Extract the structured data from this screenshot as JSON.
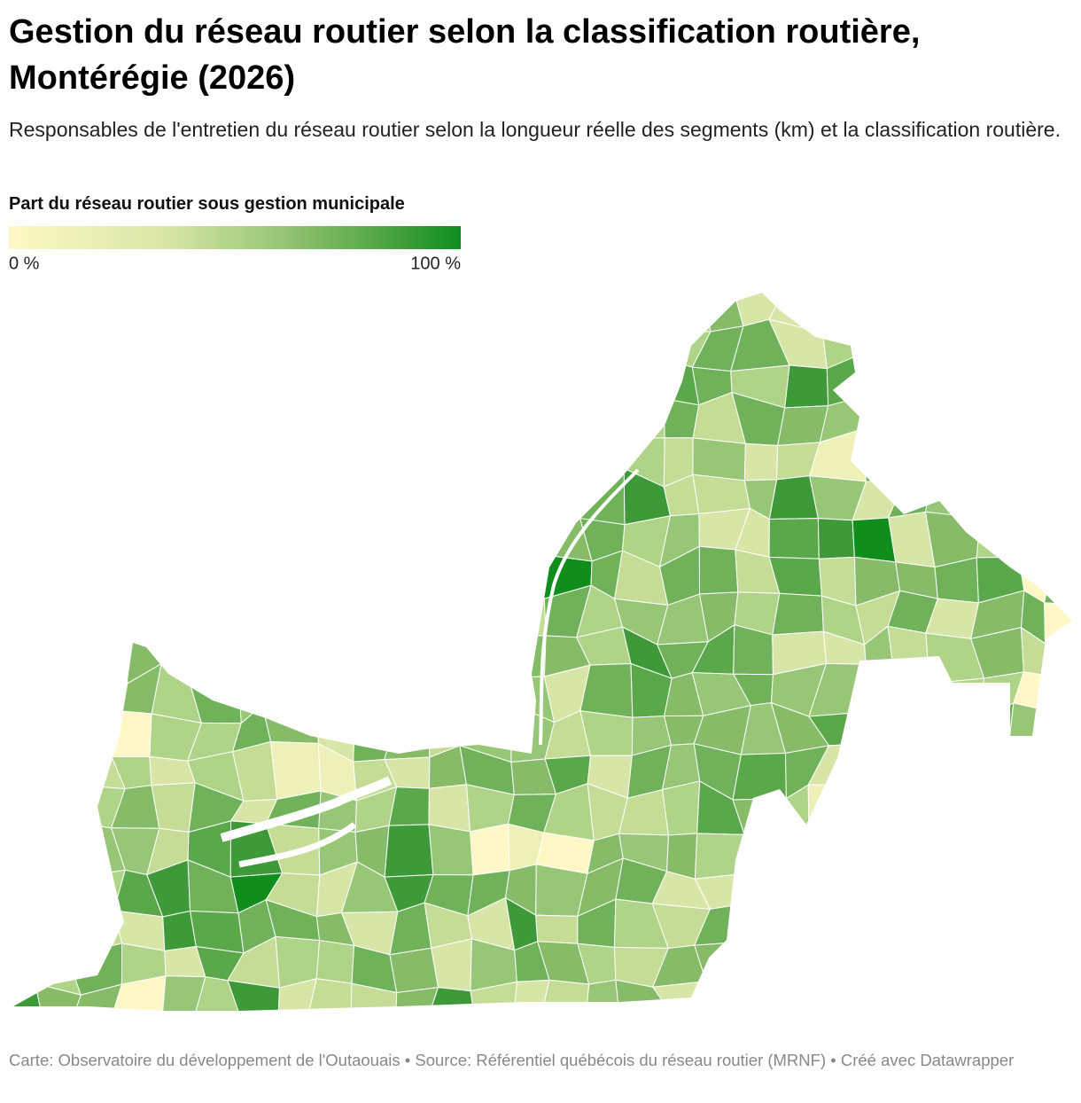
{
  "header": {
    "title": "Gestion du réseau routier selon la classification routière, Montérégie (2026)",
    "subtitle": "Responsables de l'entretien du réseau routier selon la longueur réelle des segments (km) et la classification routière."
  },
  "legend": {
    "title": "Part du réseau routier sous gestion municipale",
    "min": {
      "value": 0,
      "label": "0 %"
    },
    "max": {
      "value": 100,
      "label": "100 %"
    }
  },
  "footer": "Carte: Observatoire du développement de l'Outaouais • Source: Référentiel québécois du réseau routier (MRNF) • Créé avec Datawrapper"
}
